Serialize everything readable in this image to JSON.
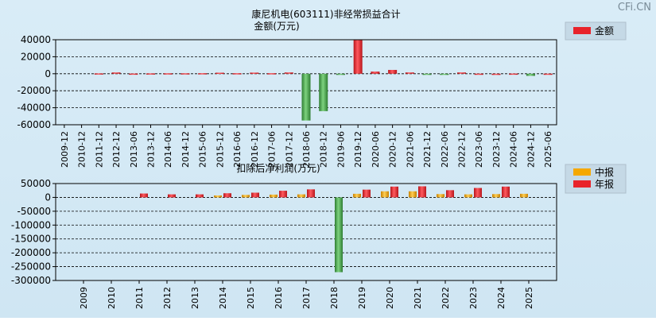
{
  "watermark": "CFi.CN",
  "chart_data": [
    {
      "type": "bar",
      "title": "康尼机电(603111)非经常损益合计",
      "ylabel": "金额(万元)",
      "ylim": [
        -60000,
        40000
      ],
      "yticks": [
        40000,
        20000,
        0,
        -20000,
        -40000,
        -60000
      ],
      "legend": {
        "position": "top-right",
        "entries": [
          {
            "name": "金额",
            "color": "#e8232a"
          }
        ]
      },
      "categories": [
        "2009-12",
        "2010-12",
        "2011-12",
        "2012-12",
        "2013-06",
        "2013-12",
        "2014-06",
        "2014-12",
        "2015-06",
        "2015-12",
        "2016-06",
        "2016-12",
        "2017-06",
        "2017-12",
        "2018-06",
        "2018-12",
        "2019-06",
        "2019-12",
        "2020-06",
        "2020-12",
        "2021-06",
        "2021-12",
        "2022-06",
        "2022-12",
        "2023-06",
        "2023-12",
        "2024-06",
        "2024-12",
        "2025-06"
      ],
      "series": [
        {
          "name": "金额",
          "values": [
            null,
            null,
            400,
            1500,
            200,
            400,
            500,
            500,
            600,
            1200,
            600,
            1300,
            600,
            1500,
            -55000,
            -44000,
            -500,
            39500,
            2500,
            4500,
            1500,
            -1200,
            -600,
            1500,
            100,
            0,
            200,
            -2500,
            100
          ]
        }
      ],
      "grid": true
    },
    {
      "type": "bar",
      "title": "扣除后净利润(万元)",
      "ylim": [
        -300000,
        50000
      ],
      "yticks": [
        50000,
        0,
        -50000,
        -100000,
        -150000,
        -200000,
        -250000,
        -300000
      ],
      "legend": {
        "position": "top-right",
        "entries": [
          {
            "name": "中报",
            "color": "#f5a800"
          },
          {
            "name": "年报",
            "color": "#e8232a"
          }
        ]
      },
      "categories": [
        "2009",
        "2010",
        "2011",
        "2012",
        "2013",
        "2014",
        "2015",
        "2016",
        "2017",
        "2018",
        "2019",
        "2020",
        "2021",
        "2022",
        "2023",
        "2024",
        "2025"
      ],
      "series": [
        {
          "name": "中报",
          "values": [
            null,
            null,
            null,
            null,
            null,
            7000,
            9000,
            10000,
            11000,
            null,
            13000,
            22000,
            22000,
            12000,
            11000,
            12000,
            13000
          ]
        },
        {
          "name": "年报",
          "values": [
            null,
            null,
            14000,
            11000,
            11000,
            15000,
            17000,
            24000,
            29000,
            -270000,
            28000,
            39000,
            40000,
            26000,
            34000,
            39000,
            null
          ]
        }
      ],
      "grid": true
    }
  ]
}
